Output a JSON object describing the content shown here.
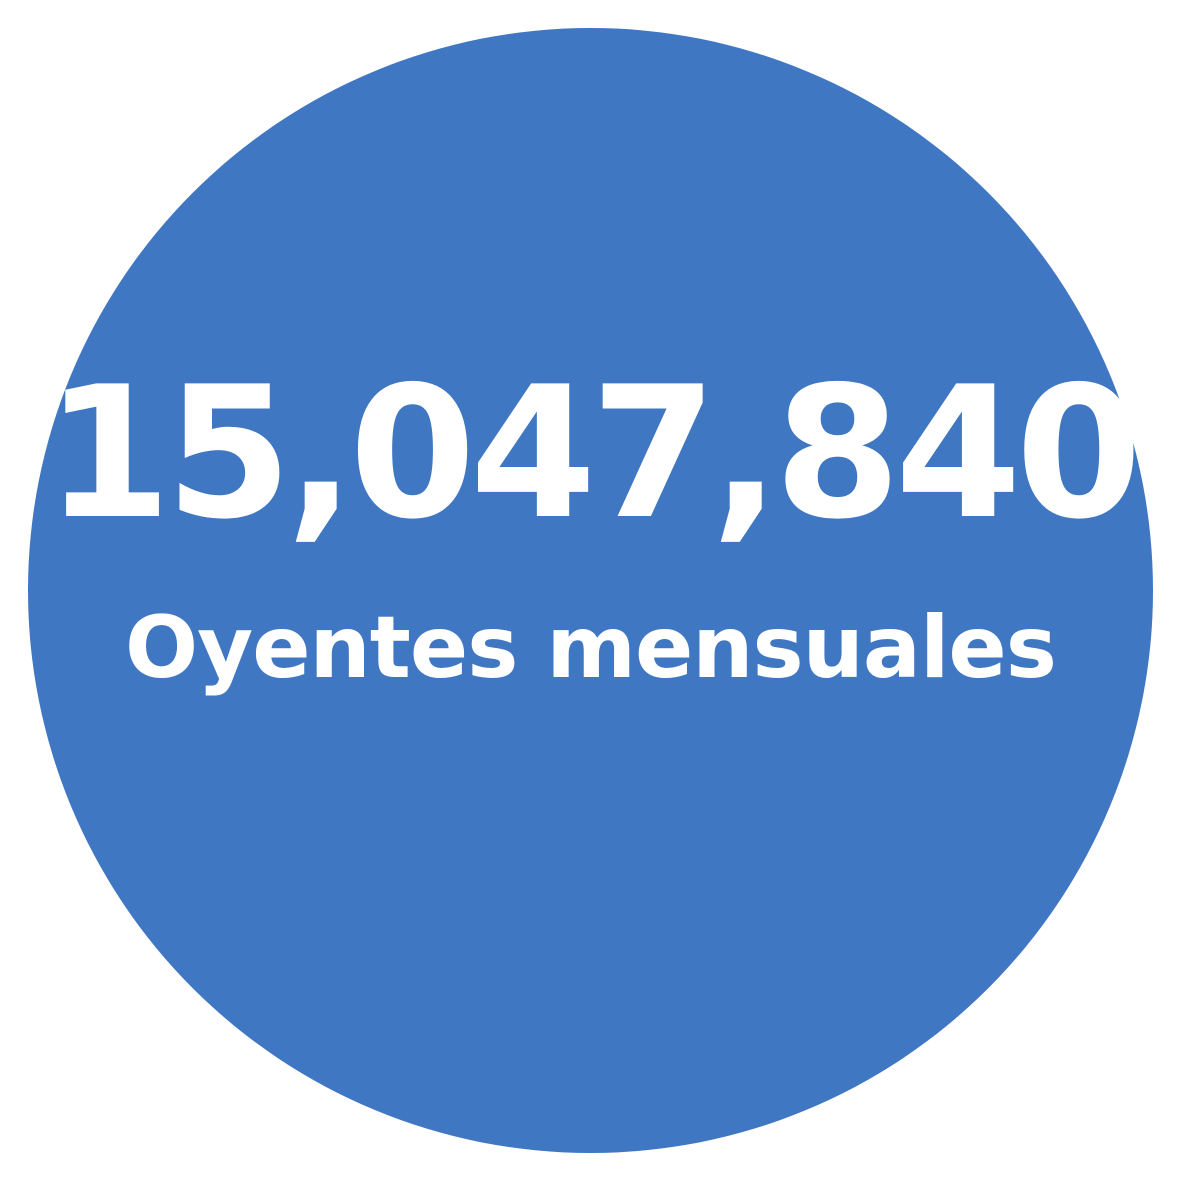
{
  "stat": {
    "value": "15,047,840",
    "label": "Oyentes mensuales"
  },
  "colors": {
    "circle": "#4077c2",
    "text": "#ffffff",
    "background": "#ffffff"
  }
}
